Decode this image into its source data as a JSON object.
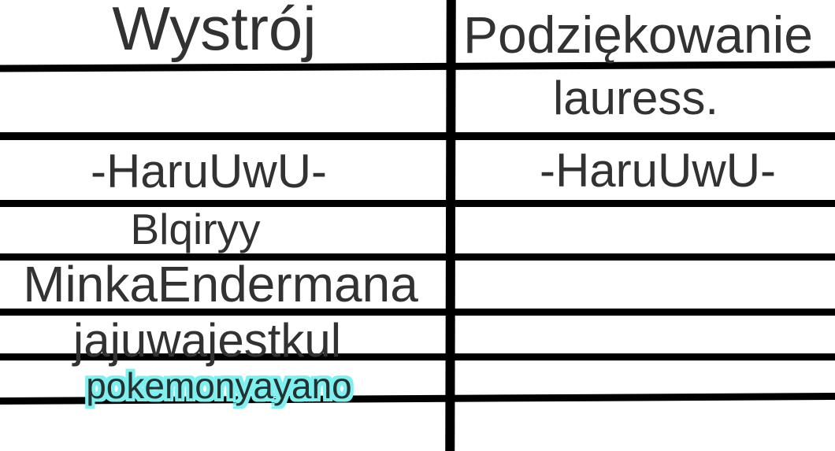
{
  "table": {
    "header": {
      "left": "Wystrój",
      "right": "Podziękowanie"
    },
    "rows": [
      {
        "left": "",
        "right": "lauress."
      },
      {
        "left": "-HaruUwU-",
        "right": "-HaruUwU-"
      },
      {
        "left": "Blqiryy",
        "right": ""
      },
      {
        "left": "MinkaEndermana",
        "right": ""
      },
      {
        "left": "jajuwajestkul",
        "right": ""
      },
      {
        "left": "pokemonyayano",
        "right": "",
        "left_highlighted": true
      },
      {
        "left": "",
        "right": ""
      }
    ],
    "colors": {
      "text": "#323232",
      "grid_line": "#000000",
      "background": "#ffffff",
      "highlight_glow": "#7ff0f0"
    }
  }
}
